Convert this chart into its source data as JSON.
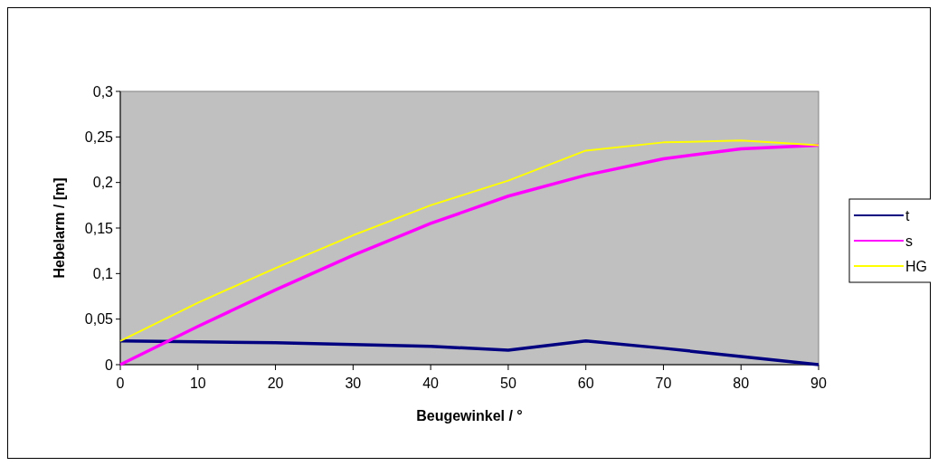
{
  "chart_data": {
    "type": "line",
    "xlabel": "Beugewinkel / °",
    "ylabel": "Hebelarm / [m]",
    "x": [
      0,
      10,
      20,
      30,
      40,
      50,
      60,
      70,
      80,
      90
    ],
    "xlim": [
      0,
      90
    ],
    "xticks": [
      0,
      10,
      20,
      30,
      40,
      50,
      60,
      70,
      80,
      90
    ],
    "ylim": [
      0,
      0.3
    ],
    "yticks": [
      {
        "value": 0,
        "label": "0"
      },
      {
        "value": 0.05,
        "label": "0,05"
      },
      {
        "value": 0.1,
        "label": "0,1"
      },
      {
        "value": 0.15,
        "label": "0,15"
      },
      {
        "value": 0.2,
        "label": "0,2"
      },
      {
        "value": 0.25,
        "label": "0,25"
      },
      {
        "value": 0.3,
        "label": "0,3"
      }
    ],
    "grid": false,
    "legend": "right",
    "marker": "none",
    "line_style": "solid",
    "series": [
      {
        "name": "t",
        "color": "#000080",
        "values": [
          0.026,
          0.025,
          0.024,
          0.022,
          0.02,
          0.016,
          0.026,
          0.018,
          0.009,
          0
        ]
      },
      {
        "name": "s",
        "color": "#ff00ff",
        "values": [
          0,
          0.042,
          0.082,
          0.12,
          0.155,
          0.185,
          0.208,
          0.226,
          0.237,
          0.241
        ]
      },
      {
        "name": "HG",
        "color": "#ffff00",
        "values": [
          0.026,
          0.068,
          0.106,
          0.142,
          0.175,
          0.202,
          0.235,
          0.244,
          0.246,
          0.241
        ]
      }
    ]
  }
}
